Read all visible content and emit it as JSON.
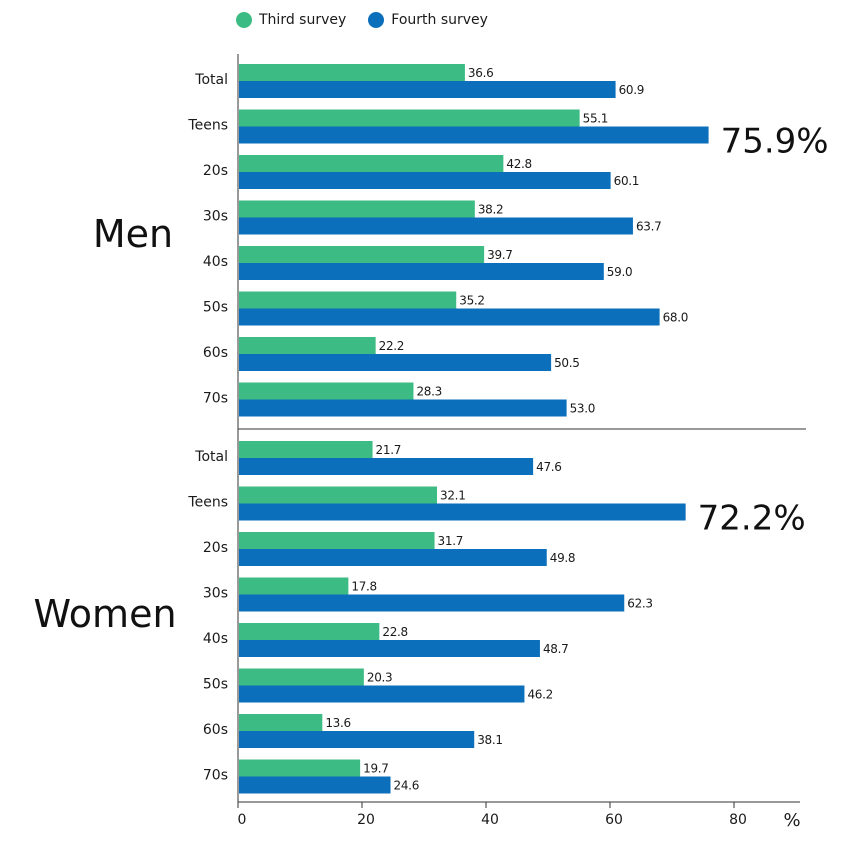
{
  "chart_data": {
    "type": "bar",
    "orientation": "horizontal",
    "categories": [
      "Total",
      "Teens",
      "20s",
      "30s",
      "40s",
      "50s",
      "60s",
      "70s"
    ],
    "groups": [
      {
        "label": "Men",
        "series": [
          {
            "name": "Third survey",
            "values": [
              36.6,
              55.1,
              42.8,
              38.2,
              39.7,
              35.2,
              22.2,
              28.3
            ]
          },
          {
            "name": "Fourth survey",
            "values": [
              60.9,
              75.9,
              60.1,
              63.7,
              59.0,
              68.0,
              50.5,
              53.0
            ]
          }
        ],
        "value_labels": [
          [
            "36.6",
            "55.1",
            "42.8",
            "38.2",
            "39.7",
            "35.2",
            "22.2",
            "28.3"
          ],
          [
            "60.9",
            "",
            "60.1",
            "63.7",
            "59.0",
            "68.0",
            "50.5",
            "53.0"
          ]
        ],
        "callout": {
          "category": "Teens",
          "text": "75.9%"
        }
      },
      {
        "label": "Women",
        "series": [
          {
            "name": "Third survey",
            "values": [
              21.7,
              32.1,
              31.7,
              17.8,
              22.8,
              20.3,
              13.6,
              19.7
            ]
          },
          {
            "name": "Fourth survey",
            "values": [
              47.6,
              72.2,
              49.8,
              62.3,
              48.7,
              46.2,
              38.1,
              24.6
            ]
          }
        ],
        "value_labels": [
          [
            "21.7",
            "32.1",
            "31.7",
            "17.8",
            "22.8",
            "20.3",
            "13.6",
            "19.7"
          ],
          [
            "47.6",
            "",
            "49.8",
            "62.3",
            "48.7",
            "46.2",
            "38.1",
            "24.6"
          ]
        ],
        "callout": {
          "category": "Teens",
          "text": "72.2%"
        }
      }
    ],
    "legend": [
      {
        "name": "Third survey",
        "color": "#3dbb84"
      },
      {
        "name": "Fourth survey",
        "color": "#0b6fbc"
      }
    ],
    "xticks": [
      "0",
      "20",
      "40",
      "60",
      "80"
    ],
    "xlim": [
      0,
      90
    ],
    "xunit": "%",
    "legend_position": "top"
  }
}
